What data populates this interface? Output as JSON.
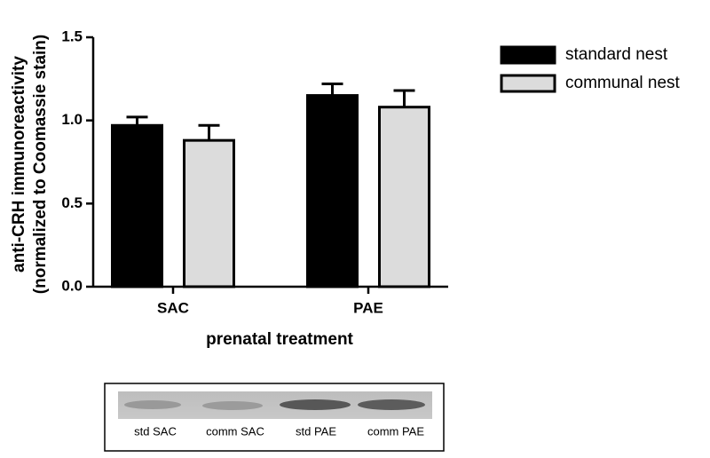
{
  "chart_data": {
    "type": "bar",
    "ylabel": [
      "anti-CRH immunoreactivity",
      "(normalized to Coomassie stain)"
    ],
    "xlabel": "prenatal treatment",
    "categories": [
      "SAC",
      "PAE"
    ],
    "series": [
      {
        "name": "standard nest",
        "color": "#000000",
        "values": [
          0.97,
          1.15
        ],
        "errors": [
          0.05,
          0.07
        ]
      },
      {
        "name": "communal nest",
        "color": "#dcdcdc",
        "values": [
          0.88,
          1.08
        ],
        "errors": [
          0.09,
          0.1
        ]
      }
    ],
    "ylim": [
      0,
      1.5
    ],
    "yticks": [
      {
        "value": 0,
        "label": "0.0"
      },
      0.5,
      {
        "value": 1,
        "label": "1.0"
      },
      1.5
    ],
    "legend": "top-right"
  },
  "blot": {
    "lanes": [
      "std SAC",
      "comm SAC",
      "std PAE",
      "comm PAE"
    ]
  }
}
